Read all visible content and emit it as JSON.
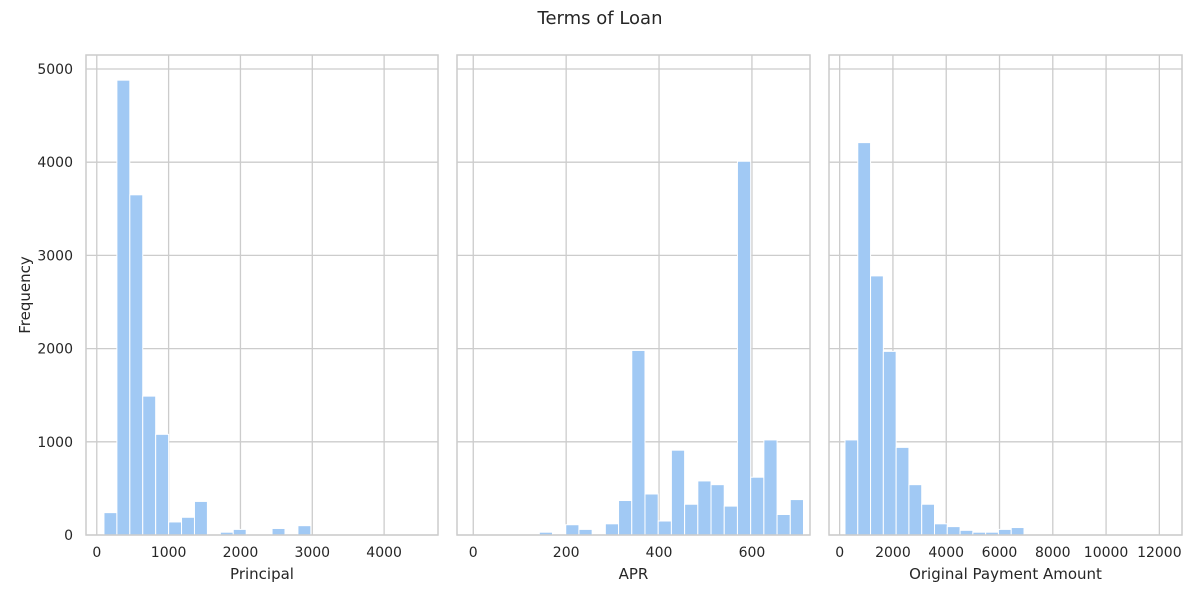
{
  "figure": {
    "title": "Terms of Loan",
    "colors": {
      "bar": "#a1c9f4",
      "bar_edge": "#ffffff",
      "grid": "#cccccc",
      "spine": "#cccccc",
      "text": "#262626",
      "background": "#ffffff"
    },
    "ylabel": "Frequency"
  },
  "chart_data": [
    {
      "type": "bar",
      "title": "",
      "xlabel": "Principal",
      "ylabel": "Frequency",
      "xlim": [
        -150,
        4750
      ],
      "ylim": [
        0,
        5150
      ],
      "xticks": [
        0,
        1000,
        2000,
        3000,
        4000
      ],
      "yticks": [
        0,
        1000,
        2000,
        3000,
        4000,
        5000
      ],
      "grid": true,
      "bins": [
        [
          100,
          280,
          240
        ],
        [
          280,
          460,
          4880
        ],
        [
          460,
          640,
          3650
        ],
        [
          640,
          820,
          1490
        ],
        [
          820,
          1000,
          1080
        ],
        [
          1000,
          1180,
          140
        ],
        [
          1180,
          1360,
          190
        ],
        [
          1360,
          1540,
          360
        ],
        [
          1540,
          1720,
          0
        ],
        [
          1720,
          1900,
          30
        ],
        [
          1900,
          2080,
          60
        ],
        [
          2080,
          2260,
          0
        ],
        [
          2260,
          2440,
          0
        ],
        [
          2440,
          2620,
          70
        ],
        [
          2620,
          2800,
          0
        ],
        [
          2800,
          2980,
          100
        ],
        [
          2980,
          3160,
          0
        ],
        [
          3160,
          3340,
          0
        ],
        [
          3340,
          3520,
          0
        ],
        [
          3520,
          3700,
          0
        ],
        [
          3700,
          3880,
          0
        ],
        [
          3880,
          4060,
          0
        ],
        [
          4060,
          4240,
          0
        ],
        [
          4240,
          4420,
          0
        ],
        [
          4420,
          4600,
          0
        ]
      ]
    },
    {
      "type": "bar",
      "title": "",
      "xlabel": "APR",
      "ylabel": "",
      "xlim": [
        -35,
        725
      ],
      "ylim": [
        0,
        5150
      ],
      "xticks": [
        0,
        200,
        400,
        600
      ],
      "yticks": [
        0,
        1000,
        2000,
        3000,
        4000,
        5000
      ],
      "grid": true,
      "bins": [
        [
          0,
          28.44,
          0
        ],
        [
          28.44,
          56.88,
          0
        ],
        [
          56.88,
          85.32,
          0
        ],
        [
          85.32,
          113.76,
          0
        ],
        [
          113.76,
          142.2,
          0
        ],
        [
          142.2,
          170.64,
          30
        ],
        [
          170.64,
          199.08,
          0
        ],
        [
          199.08,
          227.52,
          110
        ],
        [
          227.52,
          255.96,
          60
        ],
        [
          255.96,
          284.4,
          0
        ],
        [
          284.4,
          312.84,
          120
        ],
        [
          312.84,
          341.28,
          370
        ],
        [
          341.28,
          369.72,
          1980
        ],
        [
          369.72,
          398.16,
          440
        ],
        [
          398.16,
          426.6,
          150
        ],
        [
          426.6,
          455.04,
          910
        ],
        [
          455.04,
          483.48,
          330
        ],
        [
          483.48,
          511.92,
          580
        ],
        [
          511.92,
          540.36,
          540
        ],
        [
          540.36,
          568.8,
          310
        ],
        [
          568.8,
          597.24,
          4010
        ],
        [
          597.24,
          625.68,
          620
        ],
        [
          625.68,
          654.12,
          1020
        ],
        [
          654.12,
          682.56,
          220
        ],
        [
          682.56,
          711,
          380
        ]
      ]
    },
    {
      "type": "bar",
      "title": "",
      "xlabel": "Original Payment Amount",
      "ylabel": "",
      "xlim": [
        -400,
        12850
      ],
      "ylim": [
        0,
        5150
      ],
      "xticks": [
        0,
        2000,
        4000,
        6000,
        8000,
        10000,
        12000
      ],
      "yticks": [
        0,
        1000,
        2000,
        3000,
        4000,
        5000
      ],
      "grid": true,
      "bins": [
        [
          200,
          680,
          1020
        ],
        [
          680,
          1160,
          4210
        ],
        [
          1160,
          1640,
          2780
        ],
        [
          1640,
          2120,
          1970
        ],
        [
          2120,
          2600,
          940
        ],
        [
          2600,
          3080,
          540
        ],
        [
          3080,
          3560,
          330
        ],
        [
          3560,
          4040,
          120
        ],
        [
          4040,
          4520,
          90
        ],
        [
          4520,
          5000,
          50
        ],
        [
          5000,
          5480,
          30
        ],
        [
          5480,
          5960,
          30
        ],
        [
          5960,
          6440,
          60
        ],
        [
          6440,
          6920,
          80
        ],
        [
          6920,
          7400,
          0
        ],
        [
          7400,
          7880,
          0
        ],
        [
          7880,
          8360,
          0
        ],
        [
          8360,
          8840,
          0
        ],
        [
          8840,
          9320,
          0
        ],
        [
          9320,
          9800,
          0
        ],
        [
          9800,
          10280,
          0
        ],
        [
          10280,
          10760,
          0
        ],
        [
          10760,
          11240,
          0
        ],
        [
          11240,
          11720,
          0
        ],
        [
          11720,
          12200,
          0
        ]
      ]
    }
  ]
}
